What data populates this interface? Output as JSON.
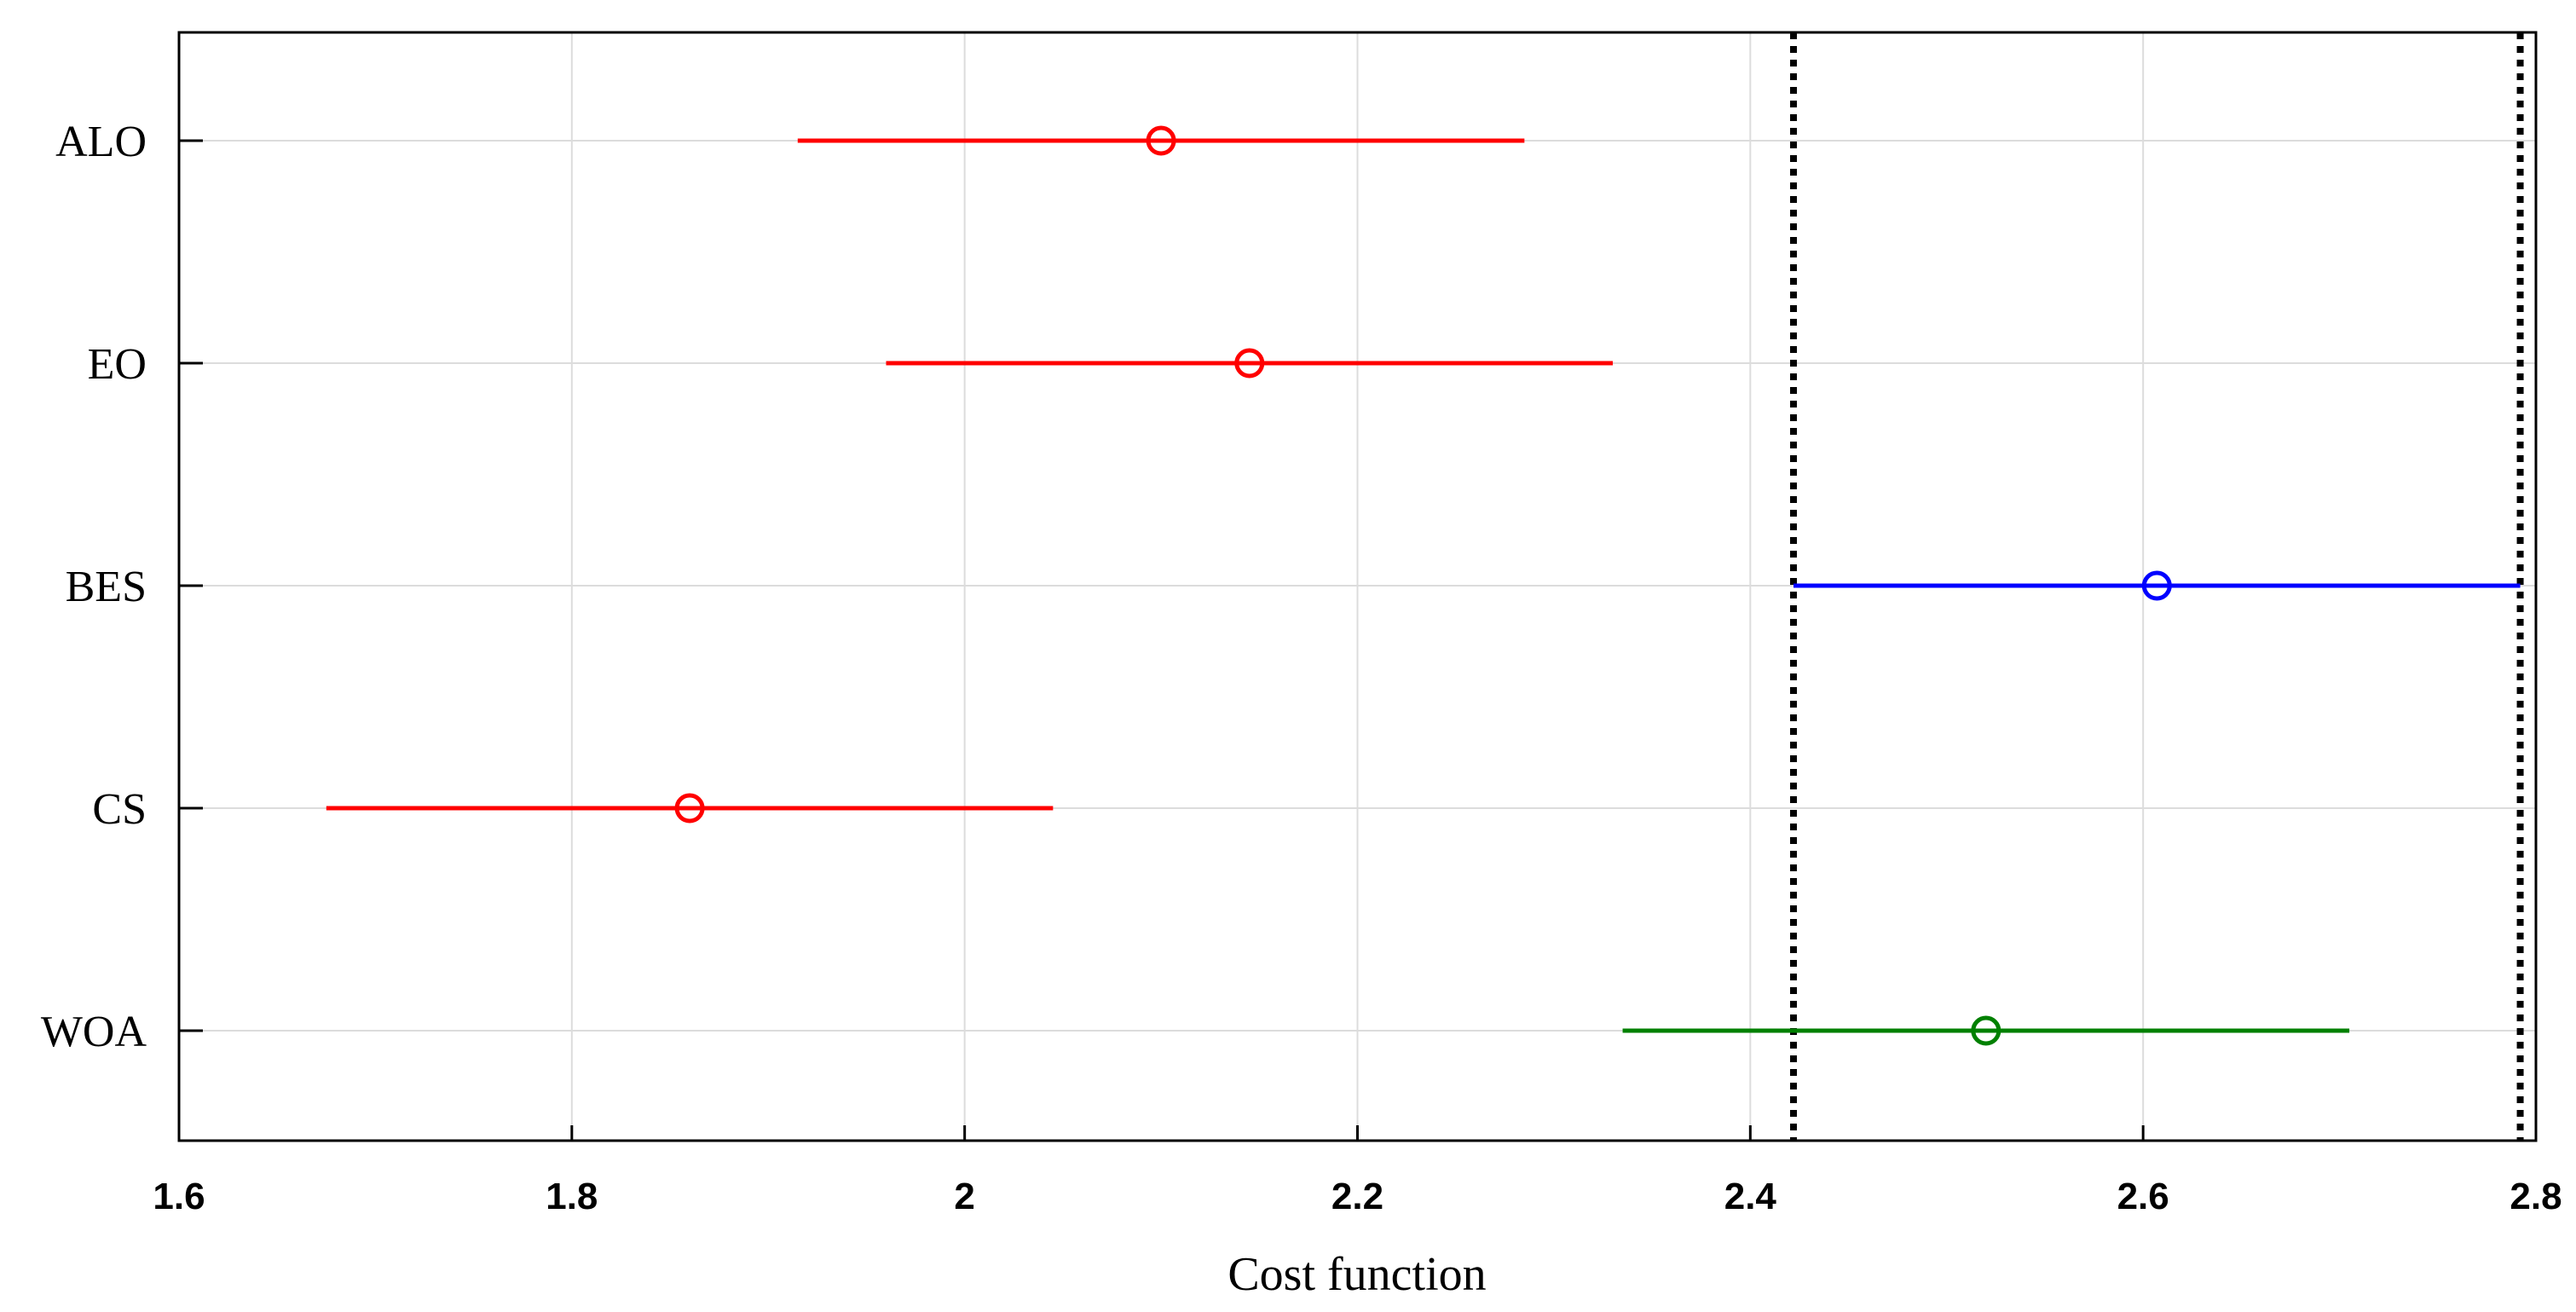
{
  "chart_data": {
    "type": "interval",
    "title": "",
    "xlabel": "Cost function",
    "ylabel": "",
    "xlim": [
      1.6,
      2.8
    ],
    "x_ticks": [
      1.6,
      1.8,
      2.0,
      2.2,
      2.4,
      2.6,
      2.8
    ],
    "x_tick_labels": [
      "1.6",
      "1.8",
      "2",
      "2.2",
      "2.4",
      "2.6",
      "2.8"
    ],
    "grid": true,
    "categories": [
      "ALO",
      "EO",
      "BES",
      "CS",
      "WOA"
    ],
    "series": [
      {
        "name": "ALO",
        "mean": 2.1,
        "low": 1.915,
        "high": 2.285,
        "color": "#ff0000"
      },
      {
        "name": "EO",
        "mean": 2.145,
        "low": 1.96,
        "high": 2.33,
        "color": "#ff0000"
      },
      {
        "name": "BES",
        "mean": 2.607,
        "low": 2.422,
        "high": 2.792,
        "color": "#0000ff"
      },
      {
        "name": "CS",
        "mean": 1.86,
        "low": 1.675,
        "high": 2.045,
        "color": "#ff0000"
      },
      {
        "name": "WOA",
        "mean": 2.52,
        "low": 2.335,
        "high": 2.705,
        "color": "#008000"
      }
    ],
    "reference_lines": [
      {
        "x": 2.422,
        "style": "dotted",
        "color": "#000000"
      },
      {
        "x": 2.792,
        "style": "dotted",
        "color": "#000000"
      }
    ]
  }
}
